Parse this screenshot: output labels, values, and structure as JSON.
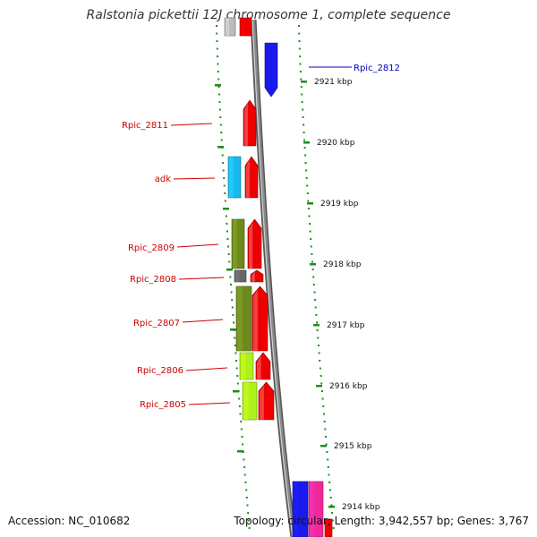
{
  "header": {
    "title": "Ralstonia pickettii 12J chromosome 1, complete sequence"
  },
  "footer": {
    "accession": "Accession: NC_010682",
    "summary": "Topology: circular; Length: 3,942,557 bp; Genes: 3,767"
  },
  "colors": {
    "forward_gene": "#ee0000",
    "reverse_gene": "#1a1aee",
    "label_forward": "#cc0000",
    "label_reverse": "#0000bb",
    "tick": "#1f8c1f",
    "backbone": "#8a8a8a",
    "olive_cog": "#6e8a1e",
    "lime_cog": "#adf21b",
    "cyan_cog": "#1ab8ee",
    "gray_cog": "#666666",
    "pink_cog": "#ee2a9a"
  },
  "scale_labels": [
    "2921 kbp",
    "2920 kbp",
    "2919 kbp",
    "2918 kbp",
    "2917 kbp",
    "2916 kbp",
    "2915 kbp",
    "2914 kbp"
  ],
  "gene_labels": [
    {
      "text": "Rpic_2812",
      "strand": "reverse"
    },
    {
      "text": "Rpic_2811",
      "strand": "forward"
    },
    {
      "text": "adk",
      "strand": "forward"
    },
    {
      "text": "Rpic_2809",
      "strand": "forward"
    },
    {
      "text": "Rpic_2808",
      "strand": "forward"
    },
    {
      "text": "Rpic_2807",
      "strand": "forward"
    },
    {
      "text": "Rpic_2806",
      "strand": "forward"
    },
    {
      "text": "Rpic_2805",
      "strand": "forward"
    }
  ]
}
